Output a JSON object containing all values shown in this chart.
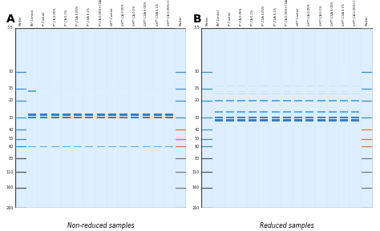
{
  "fig_width": 4.74,
  "fig_height": 2.89,
  "dpi": 100,
  "background_color": "#ffffff",
  "gel_bg_color": "#ddeeff",
  "gel_bg_light": "#e8f4ff",
  "panel_A_label": "A",
  "panel_B_label": "B",
  "subtitle_A": "Non-reduced samples",
  "subtitle_B": "Reduced samples",
  "marker_label": "Marker (kDa)",
  "mw_markers": [
    260,
    160,
    110,
    80,
    60,
    50,
    40,
    30,
    20,
    15,
    10,
    3.5
  ],
  "mw_markers_reduced": [
    260,
    160,
    110,
    80,
    60,
    50,
    40,
    30,
    20,
    15,
    10,
    3.5
  ],
  "lane_labels_A": [
    "Marker",
    "BS*-Control",
    "P*-Control",
    "P*-CA 0.05%",
    "P*-CA 0.1%",
    "P*-CGA 0.05%",
    "P*-CGA 0.1%",
    "P*-CA 0.05%+CGA 0.05%",
    "UHT*-Control",
    "UHT*-CA 0.05%",
    "UHT*-CA 0.1%",
    "UHT*-CGA 0.05%",
    "UHT*-CGA 0.1%",
    "UHT*-CA 0.05%+CGA 0.05%",
    "Marker"
  ],
  "lane_labels_B": [
    "Marker",
    "BS*-Control",
    "P*-Control",
    "P*-CA 0.05%",
    "P*-CA 0.1%",
    "P*-CGA 0.05%",
    "P*-CGA 0.1%",
    "P*-CA 0.05%+CGA 0.05%",
    "UHT*-Control",
    "UHT*-CA 0.05%",
    "UHT*-CA 0.1%",
    "UHT*-CGA 0.05%",
    "UHT*-CGA 0.1%",
    "UHT*-CA 0.05%+CGA 0.05%",
    "Marker"
  ],
  "band_color_strong": "#1a6ab5",
  "band_color_medium": "#4a9fd4",
  "band_color_light": "#a8d4ee",
  "band_color_faint": "#c8e8f8",
  "marker_band_color": "#3a8fc8",
  "marker_color_right": "#e07030"
}
